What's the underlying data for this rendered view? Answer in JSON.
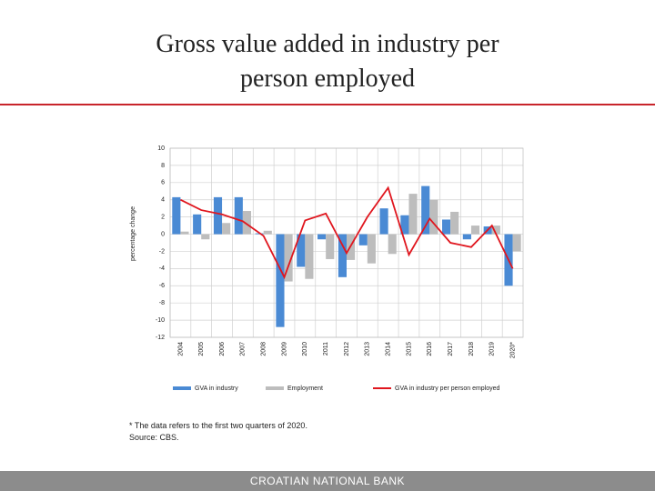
{
  "title": "Gross value added in industry per person employed",
  "chart_data": {
    "type": "bar_line",
    "y_axis_label": "percentage change",
    "categories": [
      "2004",
      "2005",
      "2006",
      "2007",
      "2008",
      "2009",
      "2010",
      "2011",
      "2012",
      "2013",
      "2014",
      "2015",
      "2016",
      "2017",
      "2018",
      "2019",
      "2020*"
    ],
    "series": [
      {
        "name": "GVA in industry",
        "color": "#4a8ad4",
        "kind": "bar",
        "values": [
          4.3,
          2.3,
          4.3,
          4.3,
          0.1,
          -10.8,
          -3.8,
          -0.6,
          -5.0,
          -1.3,
          3.0,
          2.2,
          5.6,
          1.7,
          -0.6,
          0.9,
          -6.0
        ]
      },
      {
        "name": "Employment",
        "color": "#bdbdbd",
        "kind": "bar",
        "values": [
          0.3,
          -0.6,
          1.3,
          2.7,
          0.4,
          -5.5,
          -5.2,
          -2.9,
          -3.0,
          -3.4,
          -2.3,
          4.7,
          4.0,
          2.6,
          1.0,
          1.0,
          -2.0
        ]
      },
      {
        "name": "GVA in industry per person employed",
        "color": "#e0161e",
        "kind": "line",
        "values": [
          4.0,
          2.8,
          2.3,
          1.5,
          -0.2,
          -5.0,
          1.6,
          2.4,
          -2.2,
          2.0,
          5.4,
          -2.4,
          1.8,
          -1.0,
          -1.5,
          1.0,
          -4.0
        ]
      }
    ],
    "ylim": [
      -12,
      10
    ],
    "yticks": [
      -12,
      -10,
      -8,
      -6,
      -4,
      -2,
      0,
      2,
      4,
      6,
      8,
      10
    ],
    "grid": true
  },
  "footnote": "* The data refers to the first two quarters of 2020.",
  "source": "Source: CBS.",
  "footer": "CROATIAN NATIONAL BANK"
}
